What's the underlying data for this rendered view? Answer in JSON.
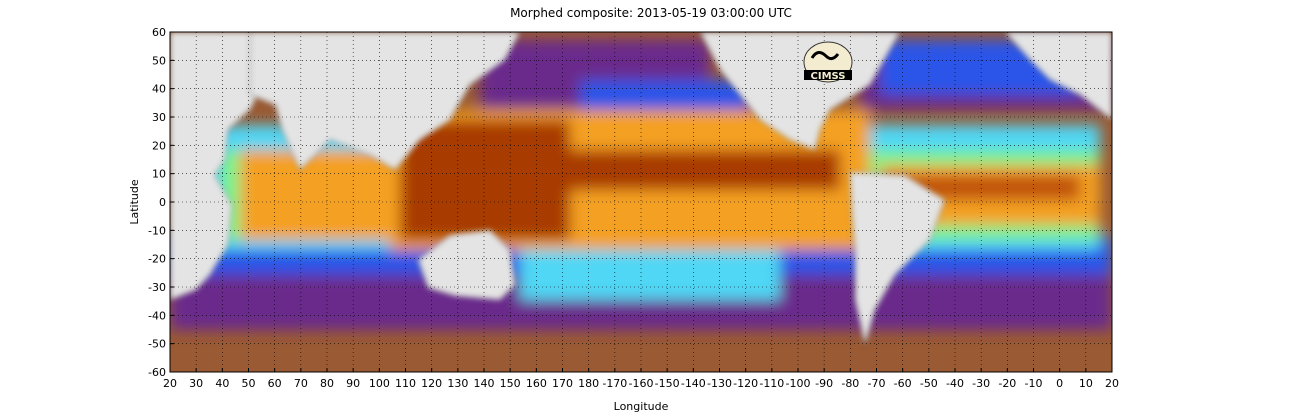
{
  "title": "Morphed composite: 2013-05-19 03:00:00 UTC",
  "logo_text": "CIMSS",
  "chart_data": {
    "type": "heatmap",
    "title": "Morphed composite: 2013-05-19 03:00:00 UTC",
    "xlabel": "Longitude",
    "ylabel": "Latitude",
    "x_tick_labels": [
      "20",
      "30",
      "40",
      "50",
      "60",
      "70",
      "80",
      "90",
      "100",
      "110",
      "120",
      "130",
      "140",
      "150",
      "160",
      "170",
      "180",
      "-170",
      "-160",
      "-150",
      "-140",
      "-130",
      "-120",
      "-110",
      "-100",
      "-90",
      "-80",
      "-70",
      "-60",
      "-50",
      "-40",
      "-30",
      "-20",
      "-10",
      "0",
      "10",
      "20"
    ],
    "y_tick_labels": [
      "60",
      "50",
      "40",
      "30",
      "20",
      "10",
      "0",
      "-10",
      "-20",
      "-30",
      "-40",
      "-50",
      "-60"
    ],
    "xlim": [
      20,
      380
    ],
    "ylim": [
      -60,
      60
    ],
    "grid": true,
    "colors": {
      "land": "#e4e4e4",
      "dry": "#9a5a33",
      "low": "#6a2c8c",
      "mid_low": "#2a55e8",
      "mid": "#4fd7f5",
      "mid_high": "#7cf28a",
      "high": "#f4a020",
      "very_high": "#a83a05"
    }
  }
}
